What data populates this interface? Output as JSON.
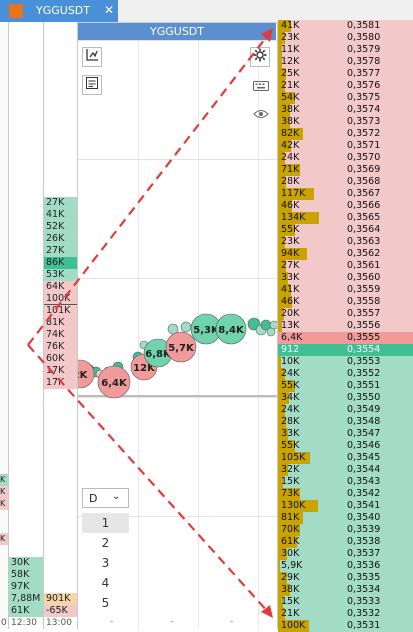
{
  "tab": {
    "title": "YGGUSDT",
    "close_glyph": "✕"
  },
  "panel_title": "YGGUSDT",
  "time_labels": [
    "0",
    "12:30",
    "13:00"
  ],
  "deltas": [
    {
      "label": "27K",
      "c": "g"
    },
    {
      "label": "41K",
      "c": "g"
    },
    {
      "label": "52K",
      "c": "g"
    },
    {
      "label": "26K",
      "c": "g"
    },
    {
      "label": "27K",
      "c": "g"
    },
    {
      "label": "86K",
      "c": "G"
    },
    {
      "label": "53K",
      "c": "g"
    },
    {
      "label": "64K",
      "c": "r"
    },
    {
      "label": "100K",
      "c": "r"
    },
    {
      "label": "101K",
      "c": "R"
    },
    {
      "label": "81K",
      "c": "r"
    },
    {
      "label": "74K",
      "c": "r"
    },
    {
      "label": "76K",
      "c": "r"
    },
    {
      "label": "60K",
      "c": "r"
    },
    {
      "label": "17K",
      "c": "r"
    },
    {
      "label": "17K",
      "c": "r"
    }
  ],
  "left_bottom": [
    {
      "label": "30K",
      "c": "g"
    },
    {
      "label": "58K",
      "c": "g"
    },
    {
      "label": "97K",
      "c": "g"
    },
    {
      "label": "7,88M",
      "c": "g"
    },
    {
      "label": "61K",
      "c": "g"
    }
  ],
  "mid_bottom": [
    {
      "label": "901K",
      "c": "o"
    },
    {
      "label": "-65K",
      "c": "r"
    }
  ],
  "left_edge_marks": [
    "K",
    "K",
    "K",
    "K"
  ],
  "bubbles": [
    {
      "label": "2K",
      "c": "r"
    },
    {
      "label": "6,4K",
      "c": "r"
    },
    {
      "label": "12K",
      "c": "r"
    },
    {
      "label": "6,8K",
      "c": "g"
    },
    {
      "label": "5,7K",
      "c": "r"
    },
    {
      "label": "5,3K",
      "c": "g"
    },
    {
      "label": "8,4K",
      "c": "g"
    }
  ],
  "timeframe": {
    "selected": "D",
    "options": [
      "1",
      "2",
      "3",
      "4",
      "5"
    ]
  },
  "ladder": [
    {
      "vol": "41K",
      "price": "0,3581",
      "side": "ask",
      "bar": 0.22
    },
    {
      "vol": "23K",
      "price": "0,3580",
      "side": "ask",
      "bar": 0.12
    },
    {
      "vol": "11K",
      "price": "0,3579",
      "side": "ask",
      "bar": 0.06
    },
    {
      "vol": "12K",
      "price": "0,3578",
      "side": "ask",
      "bar": 0.06
    },
    {
      "vol": "25K",
      "price": "0,3577",
      "side": "ask",
      "bar": 0.13
    },
    {
      "vol": "21K",
      "price": "0,3576",
      "side": "ask",
      "bar": 0.11
    },
    {
      "vol": "54K",
      "price": "0,3575",
      "side": "ask",
      "bar": 0.28
    },
    {
      "vol": "38K",
      "price": "0,3574",
      "side": "ask",
      "bar": 0.2
    },
    {
      "vol": "38K",
      "price": "0,3573",
      "side": "ask",
      "bar": 0.2
    },
    {
      "vol": "82K",
      "price": "0,3572",
      "side": "ask",
      "bar": 0.42
    },
    {
      "vol": "42K",
      "price": "0,3571",
      "side": "ask",
      "bar": 0.22
    },
    {
      "vol": "24K",
      "price": "0,3570",
      "side": "ask",
      "bar": 0.12
    },
    {
      "vol": "71K",
      "price": "0,3569",
      "side": "ask",
      "bar": 0.37
    },
    {
      "vol": "28K",
      "price": "0,3568",
      "side": "ask",
      "bar": 0.14
    },
    {
      "vol": "117K",
      "price": "0,3567",
      "side": "ask",
      "bar": 0.6
    },
    {
      "vol": "46K",
      "price": "0,3566",
      "side": "ask",
      "bar": 0.24
    },
    {
      "vol": "134K",
      "price": "0,3565",
      "side": "ask",
      "bar": 0.69
    },
    {
      "vol": "55K",
      "price": "0,3564",
      "side": "ask",
      "bar": 0.28
    },
    {
      "vol": "23K",
      "price": "0,3563",
      "side": "ask",
      "bar": 0.12
    },
    {
      "vol": "94K",
      "price": "0,3562",
      "side": "ask",
      "bar": 0.48
    },
    {
      "vol": "27K",
      "price": "0,3561",
      "side": "ask",
      "bar": 0.14
    },
    {
      "vol": "33K",
      "price": "0,3560",
      "side": "ask",
      "bar": 0.17
    },
    {
      "vol": "41K",
      "price": "0,3559",
      "side": "ask",
      "bar": 0.21
    },
    {
      "vol": "46K",
      "price": "0,3558",
      "side": "ask",
      "bar": 0.24
    },
    {
      "vol": "20K",
      "price": "0,3557",
      "side": "ask",
      "bar": 0.1
    },
    {
      "vol": "13K",
      "price": "0,3556",
      "side": "ask",
      "bar": 0.07
    },
    {
      "vol": "6,4K",
      "price": "0,3555",
      "side": "best-ask",
      "bar": 0
    },
    {
      "vol": "912",
      "price": "0,3554",
      "side": "best-bid",
      "bar": 0
    },
    {
      "vol": "10K",
      "price": "0,3553",
      "side": "bid",
      "bar": 0.05
    },
    {
      "vol": "24K",
      "price": "0,3552",
      "side": "bid",
      "bar": 0.12
    },
    {
      "vol": "55K",
      "price": "0,3551",
      "side": "bid",
      "bar": 0.28
    },
    {
      "vol": "34K",
      "price": "0,3550",
      "side": "bid",
      "bar": 0.18
    },
    {
      "vol": "24K",
      "price": "0,3549",
      "side": "bid",
      "bar": 0.12
    },
    {
      "vol": "28K",
      "price": "0,3548",
      "side": "bid",
      "bar": 0.14
    },
    {
      "vol": "33K",
      "price": "0,3547",
      "side": "bid",
      "bar": 0.17
    },
    {
      "vol": "55K",
      "price": "0,3546",
      "side": "bid",
      "bar": 0.28
    },
    {
      "vol": "105K",
      "price": "0,3545",
      "side": "bid",
      "bar": 0.54
    },
    {
      "vol": "32K",
      "price": "0,3544",
      "side": "bid",
      "bar": 0.16
    },
    {
      "vol": "15K",
      "price": "0,3543",
      "side": "bid",
      "bar": 0.08
    },
    {
      "vol": "73K",
      "price": "0,3542",
      "side": "bid",
      "bar": 0.37
    },
    {
      "vol": "130K",
      "price": "0,3541",
      "side": "bid",
      "bar": 0.67
    },
    {
      "vol": "81K",
      "price": "0,3540",
      "side": "bid",
      "bar": 0.42
    },
    {
      "vol": "70K",
      "price": "0,3539",
      "side": "bid",
      "bar": 0.36
    },
    {
      "vol": "61K",
      "price": "0,3538",
      "side": "bid",
      "bar": 0.31
    },
    {
      "vol": "30K",
      "price": "0,3537",
      "side": "bid",
      "bar": 0.15
    },
    {
      "vol": "5,9K",
      "price": "0,3536",
      "side": "bid",
      "bar": 0.03
    },
    {
      "vol": "29K",
      "price": "0,3535",
      "side": "bid",
      "bar": 0.15
    },
    {
      "vol": "38K",
      "price": "0,3534",
      "side": "bid",
      "bar": 0.2
    },
    {
      "vol": "15K",
      "price": "0,3533",
      "side": "bid",
      "bar": 0.08
    },
    {
      "vol": "21K",
      "price": "0,3532",
      "side": "bid",
      "bar": 0.11
    },
    {
      "vol": "100K",
      "price": "0,3531",
      "side": "bid",
      "bar": 0.51
    }
  ],
  "colors": {
    "tab_active": "#4a90d9",
    "ask_bg": "#f2c8c8",
    "bid_bg": "#a3dcc6",
    "best_ask": "#f19a9a",
    "best_bid": "#3ebf94",
    "volume_bar": "#c9a400",
    "arrow": "#e03c3c"
  }
}
